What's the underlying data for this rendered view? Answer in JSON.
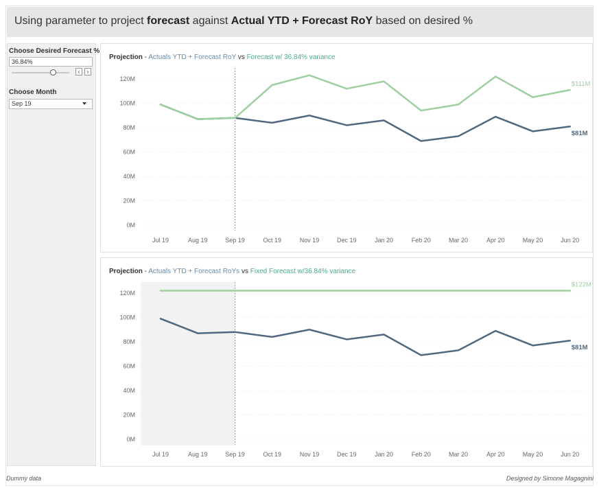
{
  "header": {
    "title_parts": [
      {
        "text": "Using parameter to project ",
        "bold": false
      },
      {
        "text": "forecast",
        "bold": true
      },
      {
        "text": " against ",
        "bold": false
      },
      {
        "text": "Actual YTD + Forecast RoY",
        "bold": true
      },
      {
        "text": " based on desired %",
        "bold": false
      }
    ]
  },
  "controls": {
    "forecast_label": "Choose Desired Forecast %",
    "forecast_value": "36.84%",
    "forecast_slider_fraction": 0.72,
    "month_label": "Choose Month",
    "month_value": "Sep 19"
  },
  "colors": {
    "actual": "#50687f",
    "forecast": "#9fcfa1",
    "actual_text": "#6a8aa6",
    "forecast_text": "#4ea88f",
    "shade": "#f2f2f2",
    "grid": "#ececec",
    "axis_text": "#666666"
  },
  "footer": {
    "left": "Dummy data",
    "right": "Designed by Simone Magagnini"
  },
  "chart_data": [
    {
      "type": "line",
      "title_parts": [
        {
          "text": "Projection",
          "style": "b"
        },
        {
          "text": " - ",
          "style": "plain"
        },
        {
          "text": "Actuals YTD + Forecast RoY",
          "style": "actual"
        },
        {
          "text": " vs ",
          "style": "plain"
        },
        {
          "text": "Forecast w/ 36.84% variance",
          "style": "forecast"
        }
      ],
      "x": [
        "Jul 19",
        "Aug 19",
        "Sep 19",
        "Oct 19",
        "Nov 19",
        "Dec 19",
        "Jan 20",
        "Feb 20",
        "Mar 20",
        "Apr 20",
        "May 20",
        "Jun 20"
      ],
      "y_ticks": [
        "0M",
        "20M",
        "40M",
        "60M",
        "80M",
        "100M",
        "120M"
      ],
      "ylim": [
        0,
        130
      ],
      "selected_month": "Sep 19",
      "shade_ytd": false,
      "series": [
        {
          "role": "actual",
          "values": [
            99,
            87,
            88,
            84,
            90,
            82,
            86,
            69,
            73,
            89,
            77,
            81
          ],
          "end_label": "$81M"
        },
        {
          "role": "forecast",
          "values": [
            99,
            87,
            88,
            115,
            123,
            112,
            118,
            94,
            99,
            122,
            105,
            111
          ],
          "end_label": "$111M"
        }
      ]
    },
    {
      "type": "line",
      "title_parts": [
        {
          "text": "Projection",
          "style": "b"
        },
        {
          "text": " - ",
          "style": "plain"
        },
        {
          "text": "Actuals YTD + Forecast RoYs",
          "style": "actual"
        },
        {
          "text": " vs ",
          "style": "plain"
        },
        {
          "text": "Fixed Forecast w/36.84% variance",
          "style": "forecast"
        }
      ],
      "x": [
        "Jul 19",
        "Aug 19",
        "Sep 19",
        "Oct 19",
        "Nov 19",
        "Dec 19",
        "Jan 20",
        "Feb 20",
        "Mar 20",
        "Apr 20",
        "May 20",
        "Jun 20"
      ],
      "y_ticks": [
        "0M",
        "20M",
        "40M",
        "60M",
        "80M",
        "100M",
        "120M"
      ],
      "ylim": [
        0,
        130
      ],
      "selected_month": "Sep 19",
      "shade_ytd": true,
      "series": [
        {
          "role": "forecast",
          "values": [
            122,
            122,
            122,
            122,
            122,
            122,
            122,
            122,
            122,
            122,
            122,
            122
          ],
          "end_label": "$122M"
        },
        {
          "role": "actual",
          "values": [
            99,
            87,
            88,
            84,
            90,
            82,
            86,
            69,
            73,
            89,
            77,
            81
          ],
          "end_label": "$81M"
        }
      ]
    }
  ]
}
